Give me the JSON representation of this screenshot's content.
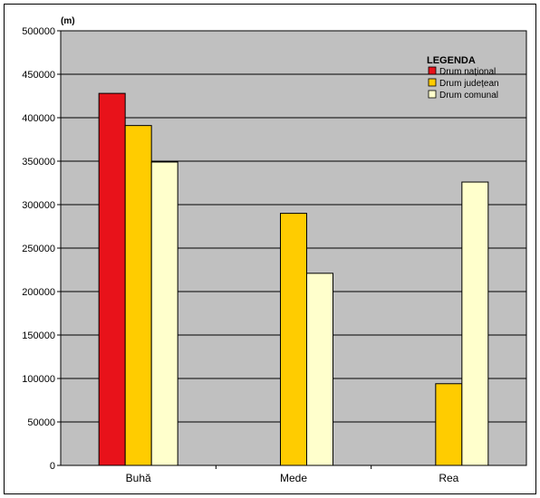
{
  "chart_data": {
    "type": "bar",
    "unit_label": "(m)",
    "categories": [
      "Buhă",
      "Mede",
      "Rea"
    ],
    "series": [
      {
        "name": "Drum național",
        "color": "#e8121a",
        "values": [
          428000,
          null,
          null
        ]
      },
      {
        "name": "Drum județean",
        "color": "#ffcc00",
        "values": [
          391000,
          290000,
          94000
        ]
      },
      {
        "name": "Drum comunal",
        "color": "#ffffcc",
        "values": [
          349000,
          221000,
          326000
        ]
      }
    ],
    "ylim": [
      0,
      500000
    ],
    "yticks": [
      0,
      50000,
      100000,
      150000,
      200000,
      250000,
      300000,
      350000,
      400000,
      450000,
      500000
    ],
    "ytick_labels": [
      "0",
      "50000",
      "100000",
      "150000",
      "200000",
      "250000",
      "300000",
      "350000",
      "400000",
      "450000",
      "500000"
    ],
    "grid": true,
    "plot_background": "#c0c0c0",
    "legend": {
      "title": "LEGENDA",
      "placement": "top-right"
    }
  }
}
